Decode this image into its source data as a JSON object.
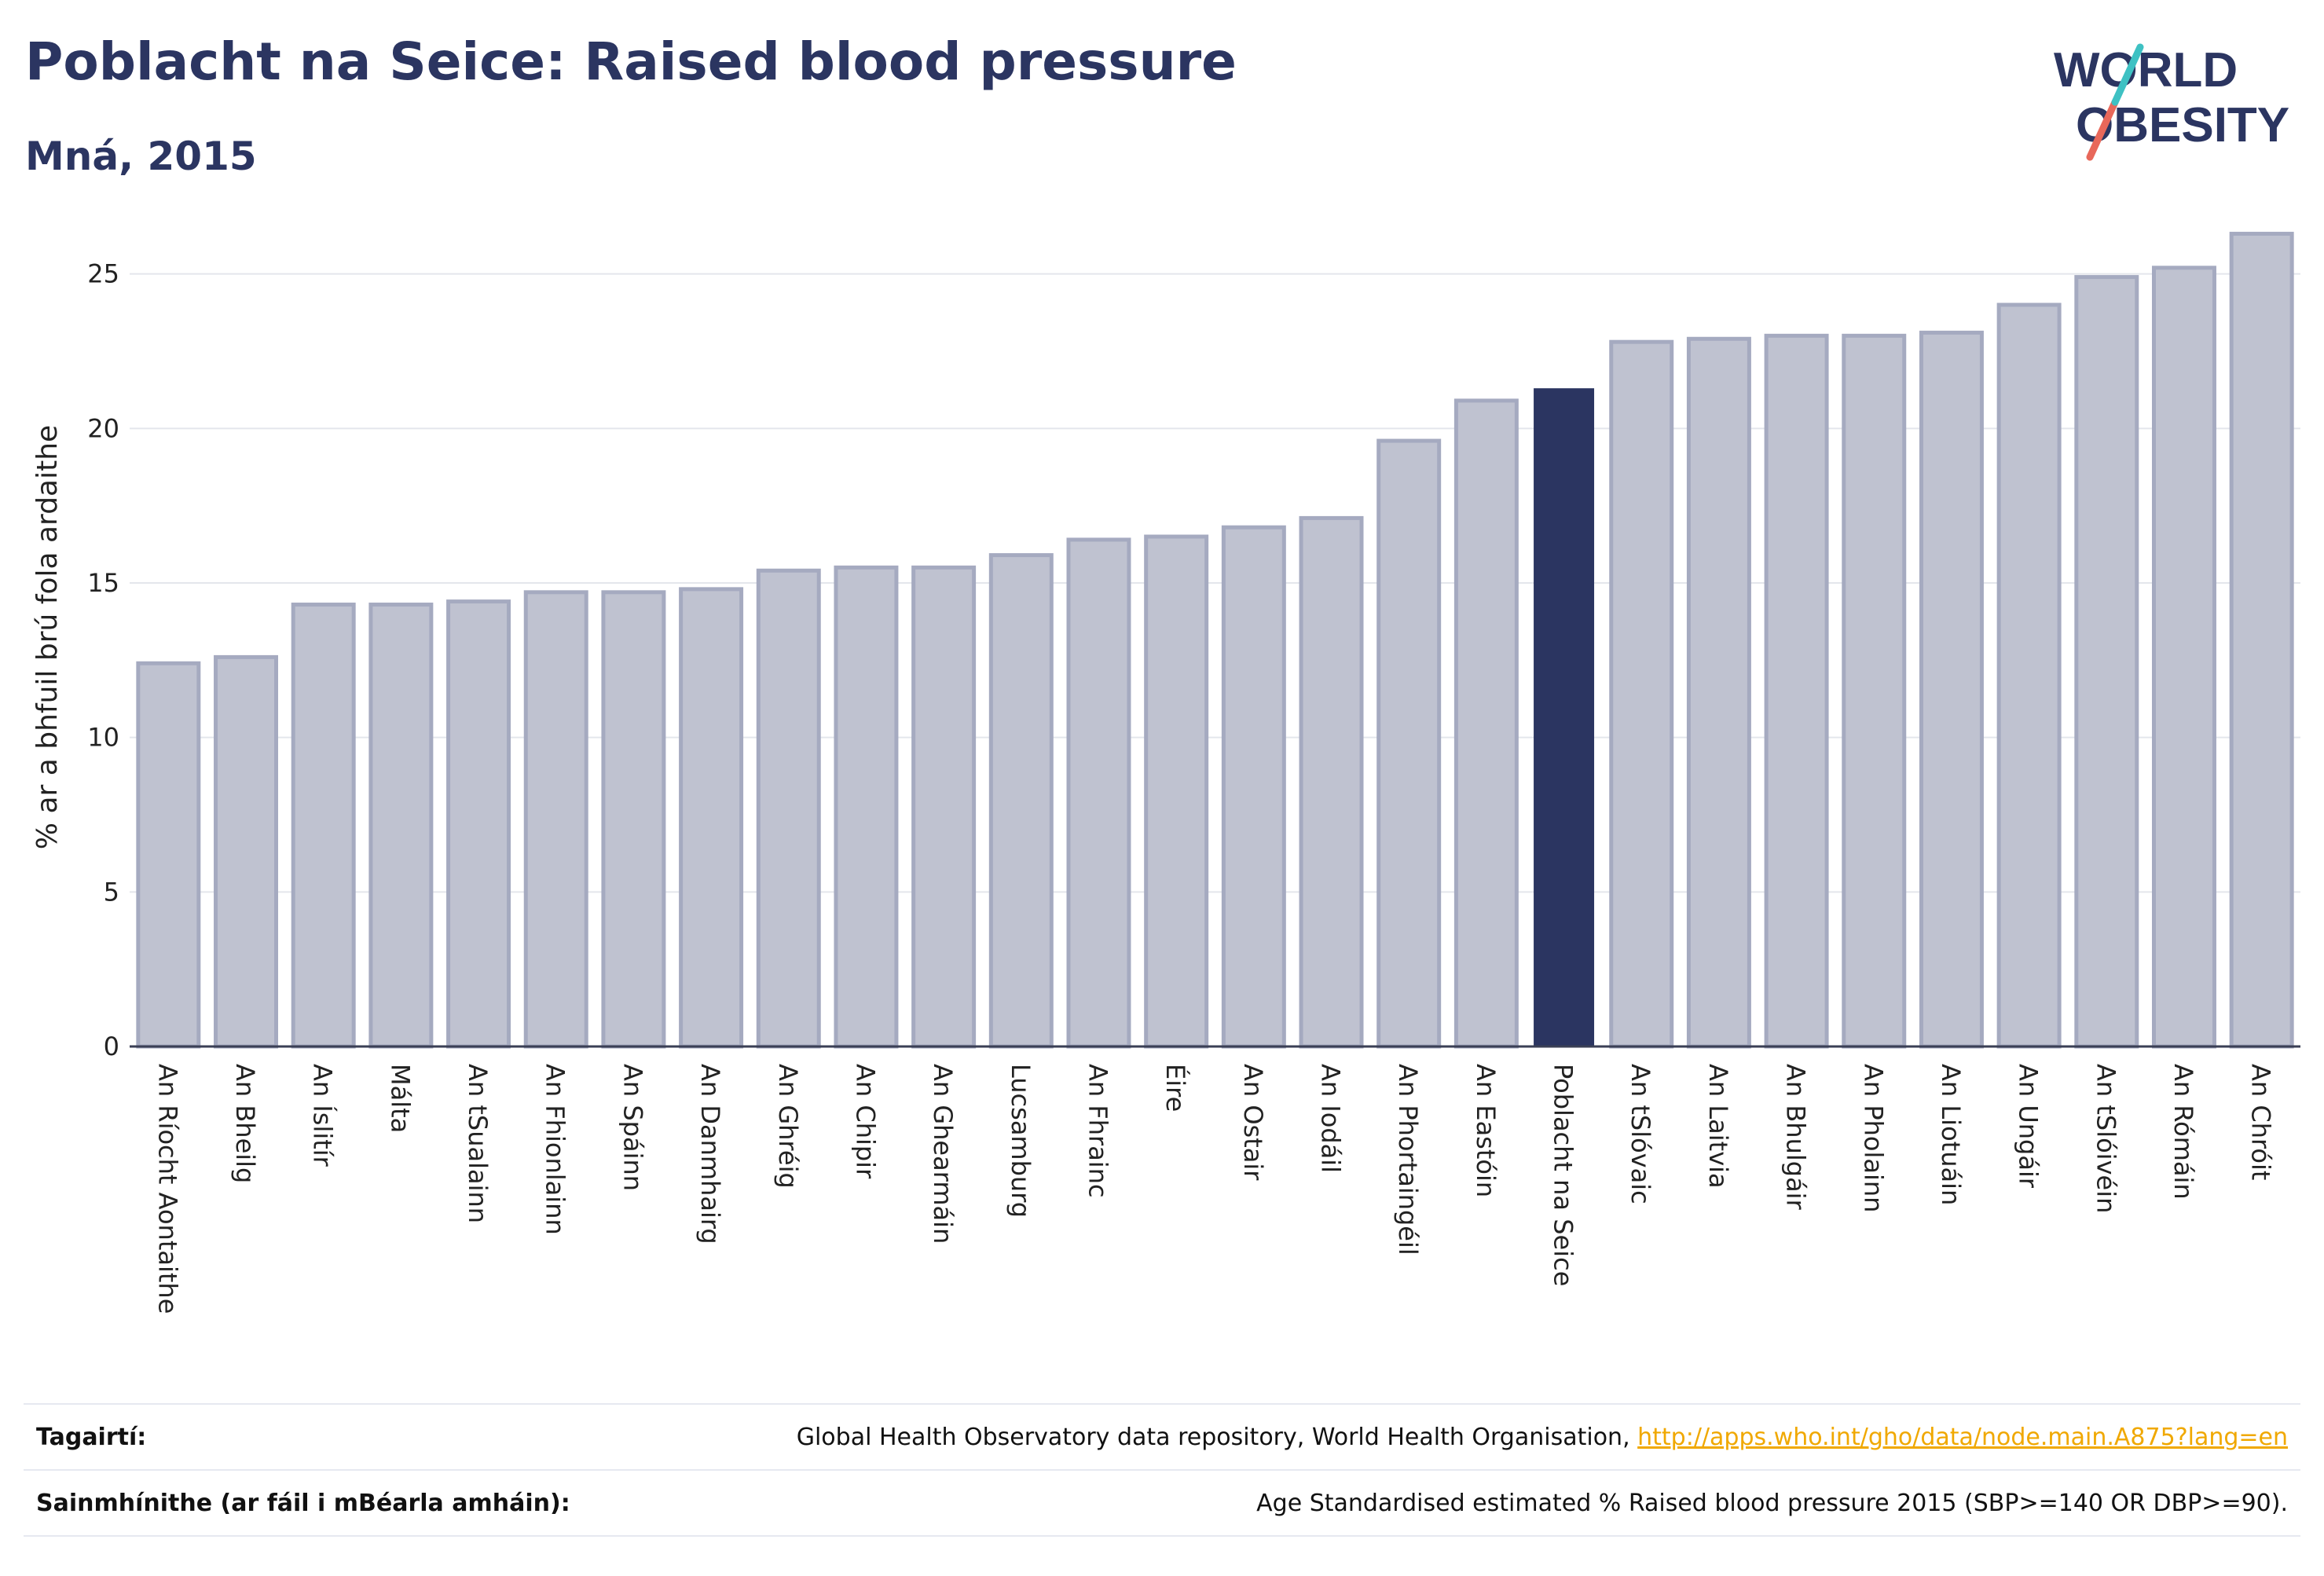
{
  "header": {
    "title": "Poblacht na Seice: Raised blood pressure",
    "subtitle": "Mná, 2015",
    "logo_line1": "WORLD",
    "logo_line2": "OBESITY"
  },
  "colors": {
    "bar_fill": "#bfc2d0",
    "bar_stroke": "#a5aac0",
    "highlight": "#2b3561",
    "title": "#2b3561",
    "logo_slash_teal": "#3ec1c3",
    "logo_slash_red": "#e8685a",
    "link": "#f0a800"
  },
  "chart_data": {
    "type": "bar",
    "ylabel": "% ar a bhfuil brú fola ardaithe",
    "ylim": [
      0,
      27
    ],
    "yticks": [
      0,
      5,
      10,
      15,
      20,
      25
    ],
    "grid": true,
    "highlight_category": "Poblacht na Seice",
    "categories": [
      "An Ríocht Aontaithe",
      "An Bheilg",
      "An Íslitír",
      "Málta",
      "An tSualainn",
      "An Fhionlainn",
      "An Spáinn",
      "An Danmhairg",
      "An Ghréig",
      "An Chipir",
      "An Ghearmáin",
      "Lucsamburg",
      "An Fhrainc",
      "Éire",
      "An Ostair",
      "An Iodáil",
      "An Phortaingéil",
      "An Eastóin",
      "Poblacht na Seice",
      "An tSlóvaic",
      "An Laitvia",
      "An Bhulgáir",
      "An Pholainn",
      "An Liotuáin",
      "An Ungáir",
      "An tSlóivéin",
      "An Rómáin",
      "An Chróit"
    ],
    "values": [
      12.4,
      12.6,
      14.3,
      14.3,
      14.4,
      14.7,
      14.7,
      14.8,
      15.4,
      15.5,
      15.5,
      15.9,
      16.4,
      16.5,
      16.8,
      17.1,
      19.6,
      20.9,
      21.3,
      22.8,
      22.9,
      23.0,
      23.0,
      23.1,
      24.0,
      24.9,
      25.2,
      26.3
    ]
  },
  "footer": {
    "ref_label": "Tagairtí:",
    "ref_text": "Global Health Observatory data repository, World Health Organisation, ",
    "ref_link": "http://apps.who.int/gho/data/node.main.A875?lang=en",
    "def_label": "Sainmhínithe (ar fáil i mBéarla amháin):",
    "def_text": "Age Standardised estimated % Raised blood pressure 2015 (SBP>=140 OR DBP>=90)."
  }
}
